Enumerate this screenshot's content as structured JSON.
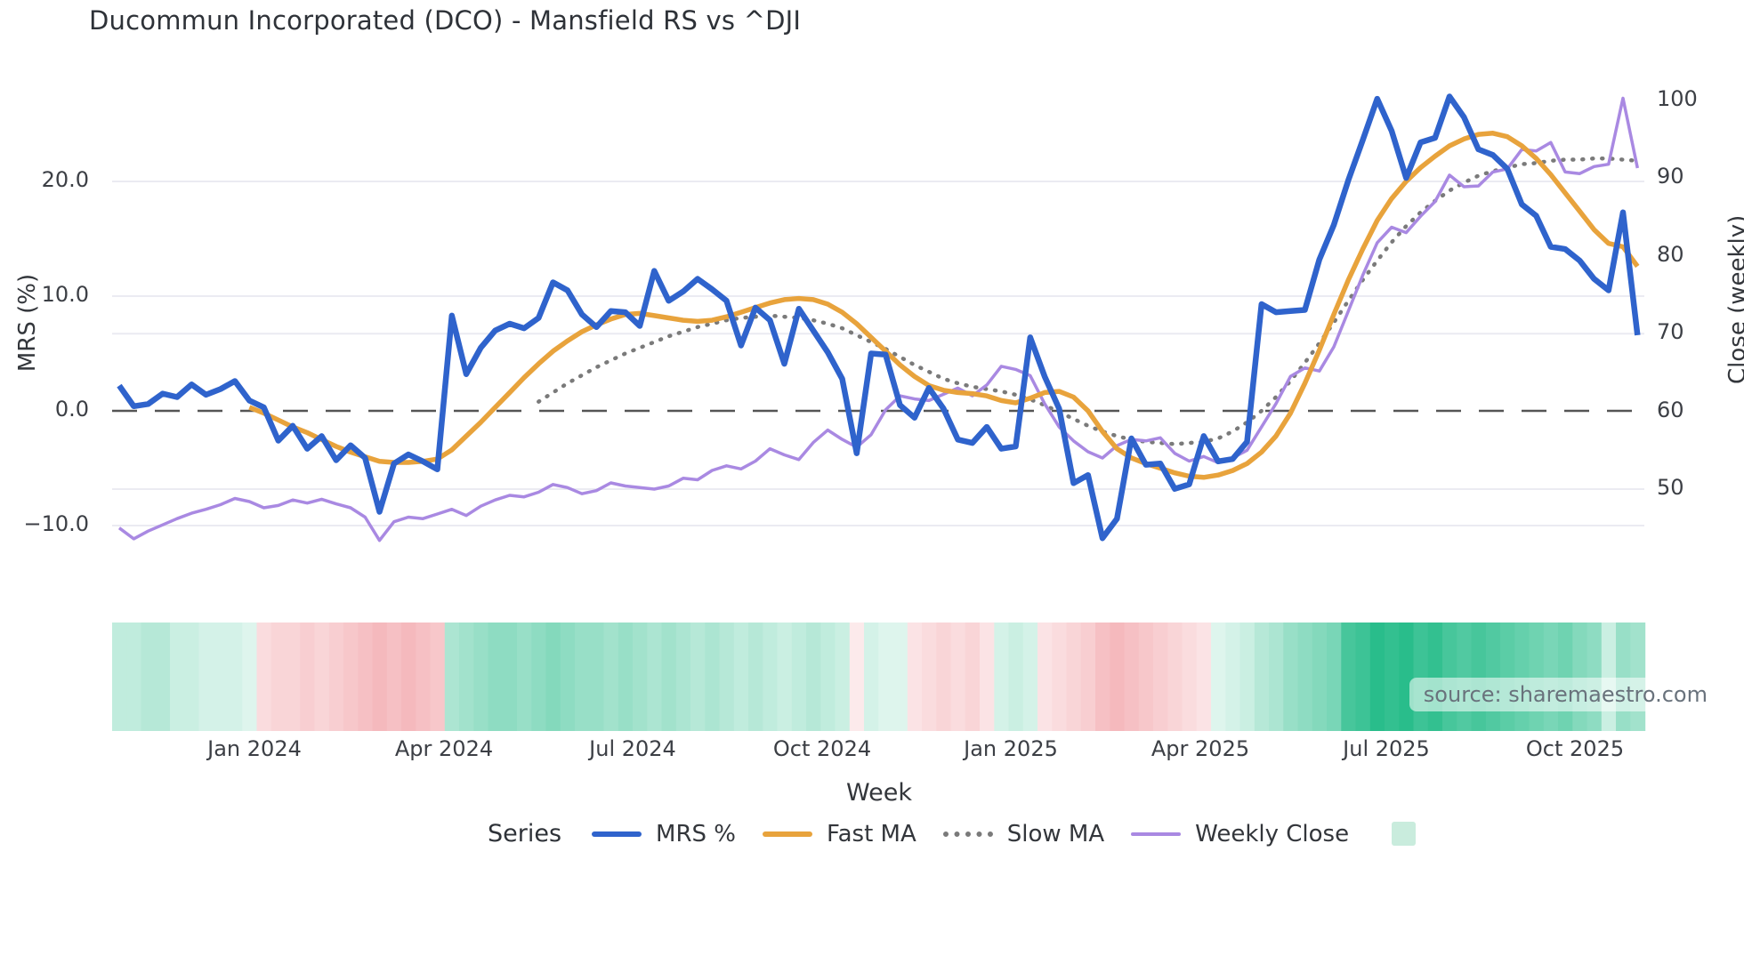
{
  "title": "Ducommun Incorporated (DCO) - Mansfield RS vs ^DJI",
  "source_note": "source: sharemaestro.com",
  "colors": {
    "mrs": "#2f63cc",
    "fast_ma": "#e8a33c",
    "slow_ma": "#7a7a7a",
    "weekly_close": "#a989e2",
    "heat_green": "#29bd8b",
    "heat_red": "#eb737b",
    "zero_line": "#555555",
    "grid": "#ebebf2",
    "swatch_green": "#c9ecdd"
  },
  "legend": {
    "title": "Series",
    "items": [
      {
        "label": "MRS %",
        "style": "solid",
        "color_key": "mrs"
      },
      {
        "label": "Fast MA",
        "style": "solid",
        "color_key": "fast_ma"
      },
      {
        "label": "Slow MA",
        "style": "dotted",
        "color_key": "slow_ma"
      },
      {
        "label": "Weekly Close",
        "style": "thin",
        "color_key": "weekly_close"
      }
    ],
    "heatmap_swatch_label": ""
  },
  "chart_data": {
    "type": "line",
    "title": "Ducommun Incorporated (DCO) - Mansfield RS vs ^DJI",
    "xlabel": "Week",
    "x_tick_labels": [
      "Jan 2024",
      "Apr 2024",
      "Jul 2024",
      "Oct 2024",
      "Jan 2025",
      "Apr 2025",
      "Jul 2025",
      "Oct 2025"
    ],
    "y_left": {
      "label": "MRS (%)",
      "tick_labels": [
        "20.0",
        "10.0",
        "0.0",
        "−10.0"
      ],
      "tick_values": [
        20,
        10,
        0,
        -10
      ],
      "range": [
        -14,
        30
      ]
    },
    "y_right": {
      "label": "Close (weekly)",
      "tick_labels": [
        "100",
        "90",
        "80",
        "70",
        "60",
        "50"
      ],
      "tick_values": [
        100,
        90,
        80,
        70,
        60,
        50
      ],
      "range": [
        40,
        104
      ]
    },
    "zero_line": 0,
    "grid": true,
    "legend_position": "bottom",
    "weeks_total": 106,
    "series": [
      {
        "name": "MRS %",
        "axis": "left",
        "style": "solid",
        "color_key": "mrs",
        "start_week": 0,
        "values": [
          2.2,
          0.4,
          0.6,
          1.5,
          1.2,
          2.3,
          1.4,
          1.9,
          2.6,
          0.9,
          0.3,
          -2.6,
          -1.3,
          -3.3,
          -2.2,
          -4.3,
          -3.0,
          -4.1,
          -8.8,
          -4.6,
          -3.8,
          -4.4,
          -5.1,
          8.3,
          3.2,
          5.5,
          7.0,
          7.6,
          7.2,
          8.1,
          11.2,
          10.5,
          8.4,
          7.3,
          8.7,
          8.6,
          7.4,
          12.2,
          9.6,
          10.4,
          11.5,
          10.6,
          9.6,
          5.7,
          9.0,
          7.9,
          4.1,
          8.9,
          7.0,
          5.1,
          2.8,
          -3.7,
          5.0,
          4.9,
          0.5,
          -0.6,
          2.0,
          0.2,
          -2.5,
          -2.8,
          -1.4,
          -3.3,
          -3.1,
          6.4,
          3.0,
          0.2,
          -6.3,
          -5.6,
          -11.1,
          -9.4,
          -2.4,
          -4.7,
          -4.6,
          -6.8,
          -6.4,
          -2.2,
          -4.4,
          -4.2,
          -2.7,
          9.3,
          8.6,
          8.7,
          8.8,
          13.2,
          16.2,
          20.1,
          23.6,
          27.2,
          24.4,
          20.3,
          23.4,
          23.8,
          27.4,
          25.6,
          22.8,
          22.3,
          21.1,
          18.0,
          17.0,
          14.3,
          14.1,
          13.1,
          11.5,
          10.5,
          17.3,
          6.6
        ]
      },
      {
        "name": "Fast MA",
        "axis": "left",
        "style": "solid",
        "color_key": "fast_ma",
        "start_week": 9,
        "values": [
          0.3,
          -0.2,
          -0.8,
          -1.4,
          -1.9,
          -2.5,
          -3.1,
          -3.6,
          -4.0,
          -4.4,
          -4.5,
          -4.5,
          -4.4,
          -4.2,
          -3.4,
          -2.2,
          -1.0,
          0.3,
          1.6,
          2.9,
          4.1,
          5.2,
          6.1,
          6.9,
          7.5,
          8.0,
          8.4,
          8.5,
          8.3,
          8.1,
          7.9,
          7.8,
          7.9,
          8.2,
          8.6,
          9.0,
          9.4,
          9.7,
          9.8,
          9.7,
          9.3,
          8.6,
          7.6,
          6.4,
          5.2,
          4.0,
          3.0,
          2.2,
          1.8,
          1.6,
          1.5,
          1.3,
          0.9,
          0.7,
          1.1,
          1.6,
          1.7,
          1.2,
          0.0,
          -1.8,
          -3.3,
          -4.1,
          -4.6,
          -5.0,
          -5.4,
          -5.7,
          -5.8,
          -5.6,
          -5.2,
          -4.6,
          -3.6,
          -2.2,
          -0.2,
          2.4,
          5.3,
          8.4,
          11.4,
          14.1,
          16.6,
          18.5,
          20.0,
          21.2,
          22.2,
          23.1,
          23.7,
          24.1,
          24.2,
          23.9,
          23.1,
          22.0,
          20.6,
          19.0,
          17.4,
          15.8,
          14.6,
          14.3,
          12.6
        ]
      },
      {
        "name": "Slow MA",
        "axis": "left",
        "style": "dotted",
        "color_key": "slow_ma",
        "start_week": 29,
        "values": [
          0.8,
          1.6,
          2.4,
          3.1,
          3.8,
          4.4,
          5.0,
          5.5,
          6.0,
          6.5,
          6.9,
          7.3,
          7.6,
          7.9,
          8.1,
          8.2,
          8.3,
          8.2,
          8.1,
          7.9,
          7.6,
          7.2,
          6.6,
          6.0,
          5.4,
          4.7,
          4.0,
          3.4,
          2.8,
          2.4,
          2.1,
          1.9,
          1.7,
          1.4,
          1.0,
          0.5,
          -0.1,
          -0.7,
          -1.3,
          -1.8,
          -2.2,
          -2.5,
          -2.7,
          -2.8,
          -2.9,
          -2.8,
          -2.7,
          -2.4,
          -1.8,
          -1.0,
          0.0,
          1.2,
          2.6,
          4.2,
          5.9,
          7.7,
          9.6,
          11.4,
          13.1,
          14.7,
          16.1,
          17.3,
          18.3,
          19.2,
          19.9,
          20.5,
          20.9,
          21.2,
          21.5,
          21.6,
          21.8,
          21.9,
          21.9,
          22.0,
          22.0,
          21.9,
          21.8
        ]
      },
      {
        "name": "Weekly Close",
        "axis": "right",
        "style": "thin",
        "color_key": "weekly_close",
        "start_week": 0,
        "values": [
          45.0,
          43.6,
          44.6,
          45.4,
          46.2,
          46.9,
          47.4,
          48.0,
          48.8,
          48.4,
          47.6,
          47.9,
          48.6,
          48.2,
          48.7,
          48.1,
          47.6,
          46.4,
          43.4,
          45.8,
          46.4,
          46.2,
          46.8,
          47.4,
          46.6,
          47.8,
          48.6,
          49.2,
          49.0,
          49.6,
          50.6,
          50.2,
          49.4,
          49.8,
          50.8,
          50.4,
          50.2,
          50.0,
          50.4,
          51.4,
          51.2,
          52.4,
          53.0,
          52.6,
          53.6,
          55.2,
          54.4,
          53.8,
          56.0,
          57.6,
          56.4,
          55.4,
          57.0,
          60.2,
          62.0,
          61.6,
          61.4,
          62.2,
          63.0,
          62.0,
          63.4,
          65.8,
          65.4,
          64.6,
          61.0,
          58.0,
          56.2,
          54.8,
          54.0,
          55.6,
          56.4,
          56.2,
          56.6,
          54.6,
          53.6,
          54.2,
          53.4,
          54.0,
          55.0,
          58.0,
          61.0,
          64.5,
          65.6,
          65.2,
          68.3,
          72.9,
          77.5,
          81.7,
          83.7,
          83.0,
          85.1,
          87.0,
          90.4,
          88.9,
          89.0,
          90.8,
          91.2,
          93.7,
          93.5,
          94.6,
          90.8,
          90.6,
          91.5,
          91.8,
          100.3,
          91.3
        ]
      }
    ],
    "heatmap": {
      "description": "weekly relative-strength heat strip, green=positive red=negative",
      "values": [
        0.25,
        0.25,
        0.3,
        0.3,
        0.2,
        0.2,
        0.15,
        0.15,
        0.15,
        0.1,
        -0.25,
        -0.3,
        -0.3,
        -0.35,
        -0.3,
        -0.35,
        -0.4,
        -0.45,
        -0.5,
        -0.45,
        -0.5,
        -0.45,
        -0.4,
        0.35,
        0.4,
        0.45,
        0.5,
        0.5,
        0.45,
        0.5,
        0.55,
        0.5,
        0.45,
        0.45,
        0.4,
        0.45,
        0.4,
        0.35,
        0.4,
        0.35,
        0.3,
        0.35,
        0.3,
        0.25,
        0.3,
        0.25,
        0.2,
        0.25,
        0.3,
        0.25,
        0.2,
        -0.15,
        0.15,
        0.1,
        0.1,
        -0.2,
        -0.25,
        -0.3,
        -0.25,
        -0.3,
        -0.2,
        0.15,
        0.2,
        0.15,
        -0.2,
        -0.25,
        -0.3,
        -0.35,
        -0.45,
        -0.5,
        -0.45,
        -0.4,
        -0.35,
        -0.3,
        -0.25,
        -0.2,
        0.1,
        0.15,
        0.2,
        0.3,
        0.35,
        0.45,
        0.5,
        0.55,
        0.6,
        0.85,
        0.9,
        1.0,
        0.95,
        1.0,
        0.9,
        0.95,
        0.85,
        0.8,
        0.85,
        0.8,
        0.75,
        0.7,
        0.65,
        0.6,
        0.65,
        0.55,
        0.5,
        0.2,
        0.45,
        0.4
      ]
    }
  }
}
